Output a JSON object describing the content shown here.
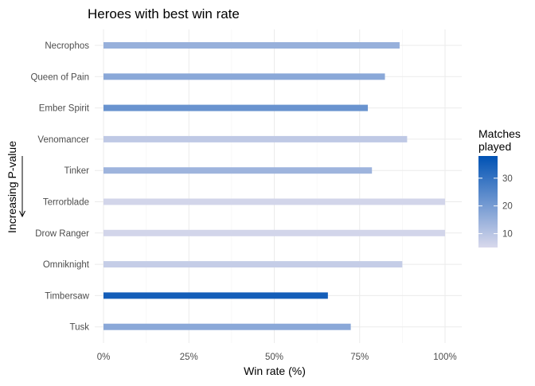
{
  "chart_data": {
    "type": "bar",
    "orientation": "horizontal",
    "title": "Heroes with best win rate",
    "xlabel": "Win rate (%)",
    "ylabel": "Increasing P-value",
    "xlim": [
      0,
      1
    ],
    "x_ticks": [
      0,
      0.25,
      0.5,
      0.75,
      1.0
    ],
    "x_tick_labels": [
      "0%",
      "25%",
      "50%",
      "75%",
      "100%"
    ],
    "grid": true,
    "categories": [
      "Necrophos",
      "Queen of Pain",
      "Ember Spirit",
      "Venomancer",
      "Tinker",
      "Terrorblade",
      "Drow Ranger",
      "Omniknight",
      "Timbersaw",
      "Tusk"
    ],
    "values": [
      0.867,
      0.824,
      0.774,
      0.889,
      0.786,
      1.0,
      1.0,
      0.875,
      0.657,
      0.724
    ],
    "matches_played": [
      15,
      17,
      22,
      9,
      14,
      6,
      6,
      8,
      35,
      17
    ],
    "legend": {
      "title_line1": "Matches",
      "title_line2": "played",
      "ticks": [
        10,
        20,
        30
      ],
      "tick_labels": [
        "10",
        "20",
        "30"
      ],
      "range": [
        5,
        38
      ],
      "color_low": "#d9d9ec",
      "color_high": "#0052b4",
      "placement": "right"
    }
  }
}
